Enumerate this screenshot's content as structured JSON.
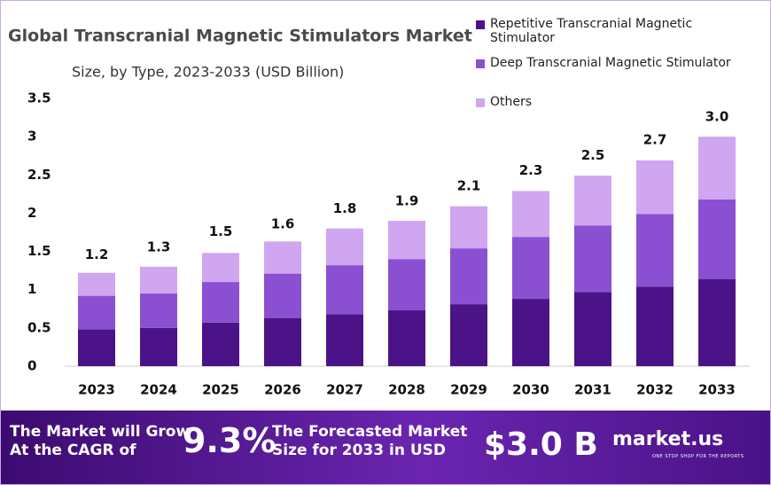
{
  "chart_data": {
    "type": "stacked_bar",
    "title": "Global Transcranial Magnetic Stimulators Market",
    "subtitle": "Size, by Type, 2023-2033 (USD Billion)",
    "categories": [
      "2023",
      "2024",
      "2025",
      "2026",
      "2027",
      "2028",
      "2029",
      "2030",
      "2031",
      "2032",
      "2033"
    ],
    "series": [
      {
        "name": "Repetitive Transcranial Magnetic Stimulator",
        "color": "#4c1389",
        "values": [
          0.48,
          0.5,
          0.57,
          0.63,
          0.68,
          0.73,
          0.81,
          0.88,
          0.97,
          1.04,
          1.14
        ]
      },
      {
        "name": "Deep Transcranial Magnetic Stimulator",
        "color": "#8b4fd1",
        "values": [
          0.44,
          0.45,
          0.53,
          0.58,
          0.64,
          0.67,
          0.73,
          0.81,
          0.87,
          0.95,
          1.04
        ]
      },
      {
        "name": "Others",
        "color": "#cfa6ef",
        "values": [
          0.3,
          0.35,
          0.38,
          0.42,
          0.48,
          0.5,
          0.55,
          0.6,
          0.65,
          0.7,
          0.82
        ]
      }
    ],
    "totals": [
      1.2,
      1.3,
      1.5,
      1.6,
      1.8,
      1.9,
      2.1,
      2.3,
      2.5,
      2.7,
      3.0
    ],
    "totals_labels": [
      "1.2",
      "1.3",
      "1.5",
      "1.6",
      "1.8",
      "1.9",
      "2.1",
      "2.3",
      "2.5",
      "2.7",
      "3.0"
    ],
    "ylim": [
      0,
      3.5
    ],
    "yticks": [
      0,
      0.5,
      1,
      1.5,
      2,
      2.5,
      3,
      3.5
    ],
    "grid": false
  },
  "footer": {
    "cagr_text": [
      "The Market will Grow",
      "At the CAGR of"
    ],
    "cagr_value": "9.3%",
    "forecast_text": [
      "The Forecasted Market",
      "Size for 2033 in USD"
    ],
    "forecast_value": "$3.0 B",
    "brand": "market.us",
    "brand_tagline": "ONE STOP SHOP FOR THE REPORTS"
  }
}
